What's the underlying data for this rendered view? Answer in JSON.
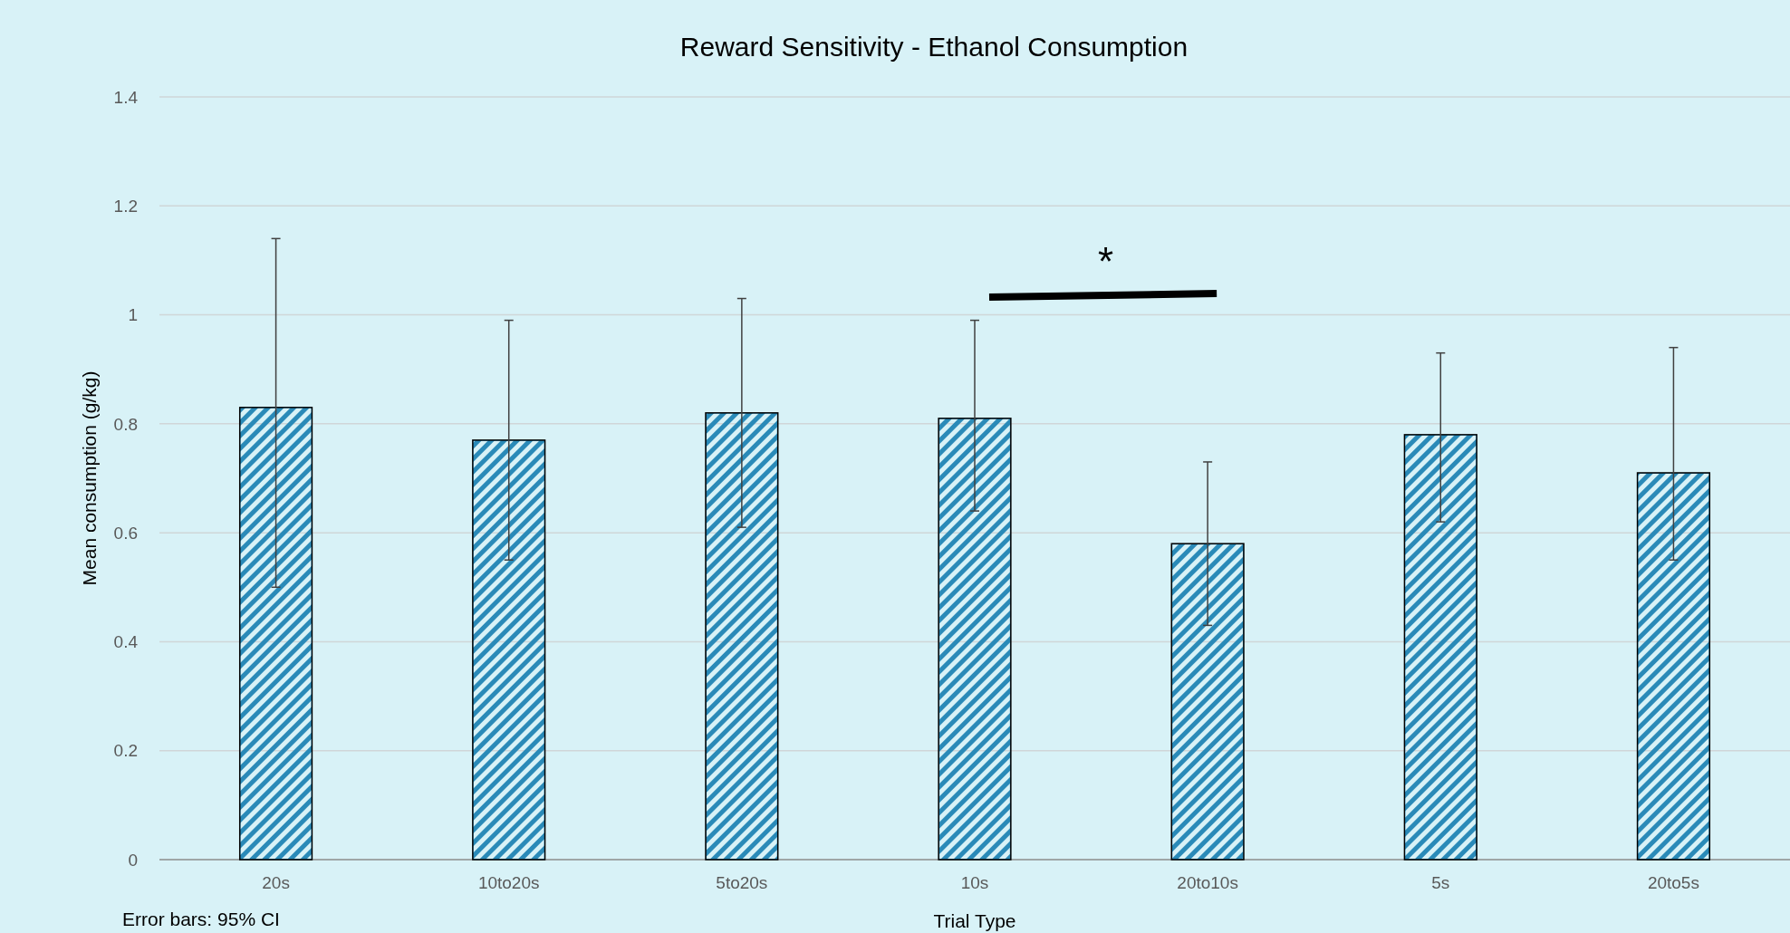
{
  "chart_data": {
    "type": "bar",
    "title": "Reward Sensitivity - Ethanol Consumption",
    "xlabel": "Trial Type",
    "ylabel": "Mean consumption (g/kg)",
    "categories": [
      "20s",
      "10to20s",
      "5to20s",
      "10s",
      "20to10s",
      "5s",
      "20to5s"
    ],
    "values": [
      0.83,
      0.77,
      0.82,
      0.81,
      0.58,
      0.78,
      0.71
    ],
    "color": "#2a8ab8",
    "errors": [
      [
        0.5,
        1.14
      ],
      [
        0.55,
        0.99
      ],
      [
        0.61,
        1.03
      ],
      [
        0.64,
        0.99
      ],
      [
        0.43,
        0.73
      ],
      [
        0.62,
        0.93
      ],
      [
        0.55,
        0.94
      ]
    ],
    "ylim": [
      0,
      1.4
    ],
    "yticks": [
      0,
      0.2,
      0.4,
      0.6,
      0.8,
      1,
      1.2,
      1.4
    ],
    "grid": "y",
    "annotations": [
      "*",
      "Error bars: 95% CI"
    ]
  }
}
